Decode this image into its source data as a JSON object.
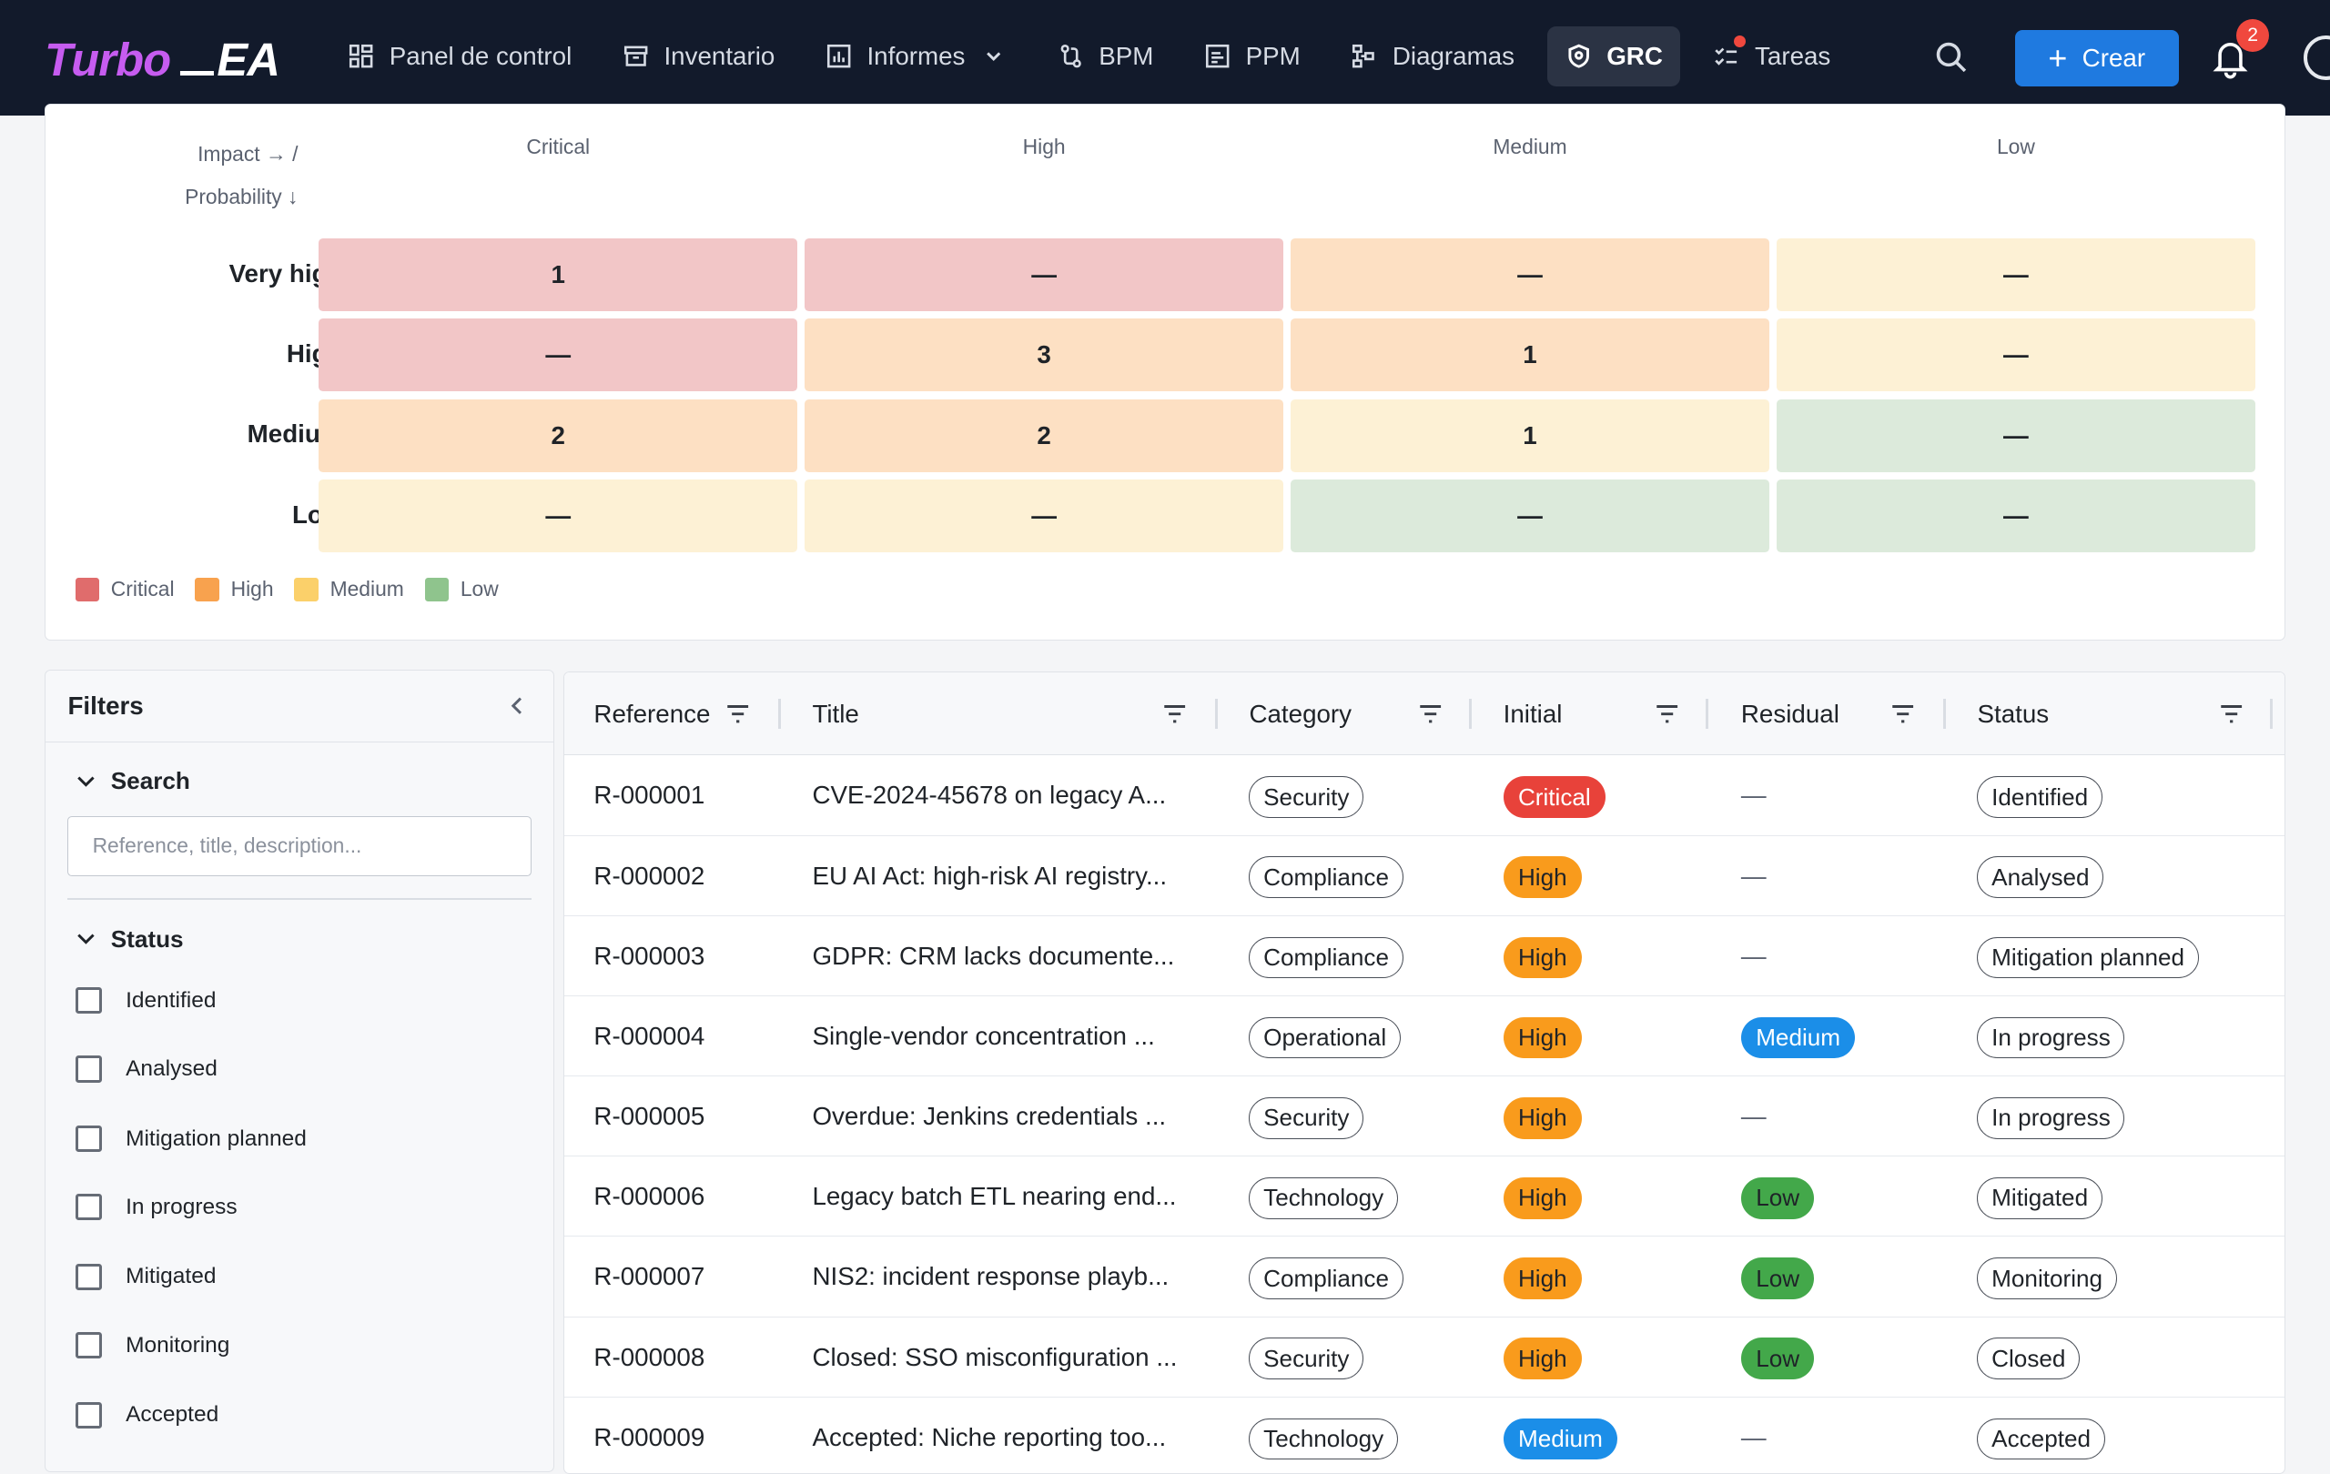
{
  "app": {
    "logo_turbo": "Turbo",
    "logo_ea": "EA"
  },
  "nav": {
    "items": [
      {
        "label": "Panel de control",
        "icon": "dashboard-icon"
      },
      {
        "label": "Inventario",
        "icon": "archive-icon"
      },
      {
        "label": "Informes",
        "icon": "chart-icon"
      },
      {
        "label": "BPM",
        "icon": "process-icon"
      },
      {
        "label": "PPM",
        "icon": "project-icon"
      },
      {
        "label": "Diagramas",
        "icon": "diagram-icon"
      },
      {
        "label": "GRC",
        "icon": "shield-icon"
      },
      {
        "label": "Tareas",
        "icon": "tasks-icon"
      }
    ],
    "create_label": "Crear",
    "notification_count": "2"
  },
  "heatmap": {
    "axis_impact": "Impact → /",
    "axis_probability": "Probability ↓",
    "columns": [
      "Critical",
      "High",
      "Medium",
      "Low"
    ],
    "rows": [
      {
        "label": "Very high",
        "cells": [
          "1",
          "—",
          "—",
          "—"
        ]
      },
      {
        "label": "High",
        "cells": [
          "—",
          "3",
          "1",
          "—"
        ]
      },
      {
        "label": "Medium",
        "cells": [
          "2",
          "2",
          "1",
          "—"
        ]
      },
      {
        "label": "Low",
        "cells": [
          "—",
          "—",
          "—",
          "—"
        ]
      }
    ],
    "colors": {
      "critical": "#f2c6c7",
      "high": "#fde0c3",
      "medium": "#fdf1d5",
      "low": "#dceadb"
    },
    "legend": [
      {
        "label": "Critical",
        "color": "#e06c6c"
      },
      {
        "label": "High",
        "color": "#f8a24e"
      },
      {
        "label": "Medium",
        "color": "#fbd06a"
      },
      {
        "label": "Low",
        "color": "#8fc48d"
      }
    ]
  },
  "filters": {
    "title": "Filters",
    "search_section": "Search",
    "search_placeholder": "Reference, title, description...",
    "status_section": "Status",
    "status_options": [
      "Identified",
      "Analysed",
      "Mitigation planned",
      "In progress",
      "Mitigated",
      "Monitoring",
      "Accepted"
    ]
  },
  "table": {
    "headers": [
      "Reference",
      "Title",
      "Category",
      "Initial",
      "Residual",
      "Status"
    ],
    "rows": [
      {
        "ref": "R-000001",
        "title": "CVE-2024-45678 on legacy A...",
        "category": "Security",
        "initial": "Critical",
        "residual": "—",
        "status": "Identified"
      },
      {
        "ref": "R-000002",
        "title": "EU AI Act: high-risk AI registry...",
        "category": "Compliance",
        "initial": "High",
        "residual": "—",
        "status": "Analysed"
      },
      {
        "ref": "R-000003",
        "title": "GDPR: CRM lacks documente...",
        "category": "Compliance",
        "initial": "High",
        "residual": "—",
        "status": "Mitigation planned"
      },
      {
        "ref": "R-000004",
        "title": "Single-vendor concentration ...",
        "category": "Operational",
        "initial": "High",
        "residual": "Medium",
        "status": "In progress"
      },
      {
        "ref": "R-000005",
        "title": "Overdue: Jenkins credentials ...",
        "category": "Security",
        "initial": "High",
        "residual": "—",
        "status": "In progress"
      },
      {
        "ref": "R-000006",
        "title": "Legacy batch ETL nearing end...",
        "category": "Technology",
        "initial": "High",
        "residual": "Low",
        "status": "Mitigated"
      },
      {
        "ref": "R-000007",
        "title": "NIS2: incident response playb...",
        "category": "Compliance",
        "initial": "High",
        "residual": "Low",
        "status": "Monitoring"
      },
      {
        "ref": "R-000008",
        "title": "Closed: SSO misconfiguration ...",
        "category": "Security",
        "initial": "High",
        "residual": "Low",
        "status": "Closed"
      },
      {
        "ref": "R-000009",
        "title": "Accepted: Niche reporting too...",
        "category": "Technology",
        "initial": "Medium",
        "residual": "—",
        "status": "Accepted"
      }
    ],
    "level_colors": {
      "Critical": "#e8423a",
      "High": "#f99b1c",
      "Medium": "#1b8ee8",
      "Low": "#43a84a"
    }
  }
}
